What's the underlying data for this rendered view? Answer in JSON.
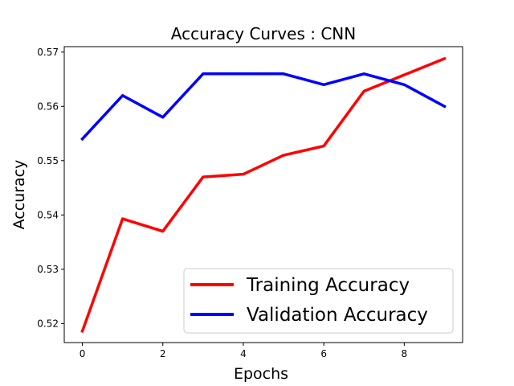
{
  "chart_data": {
    "type": "line",
    "title": "Accuracy Curves : CNN",
    "xlabel": "Epochs",
    "ylabel": "Accuracy",
    "x": [
      0,
      1,
      2,
      3,
      4,
      5,
      6,
      7,
      8,
      9
    ],
    "xlim": [
      -0.45,
      9.45
    ],
    "ylim": [
      0.5165,
      0.571
    ],
    "xticks": [
      0,
      2,
      4,
      6,
      8
    ],
    "xtick_labels": [
      "0",
      "2",
      "4",
      "6",
      "8"
    ],
    "yticks": [
      0.52,
      0.53,
      0.54,
      0.55,
      0.56,
      0.57
    ],
    "ytick_labels": [
      "0.52",
      "0.53",
      "0.54",
      "0.55",
      "0.56",
      "0.57"
    ],
    "grid": false,
    "legend_position": "lower-right",
    "series": [
      {
        "name": "Training Accuracy",
        "color": "#ff0000",
        "values": [
          0.5186,
          0.5393,
          0.537,
          0.547,
          0.5475,
          0.551,
          0.5527,
          0.5628,
          0.5658,
          0.5688
        ]
      },
      {
        "name": "Validation Accuracy",
        "color": "#0000ff",
        "values": [
          0.554,
          0.562,
          0.558,
          0.566,
          0.566,
          0.566,
          0.564,
          0.566,
          0.564,
          0.56
        ]
      }
    ]
  }
}
